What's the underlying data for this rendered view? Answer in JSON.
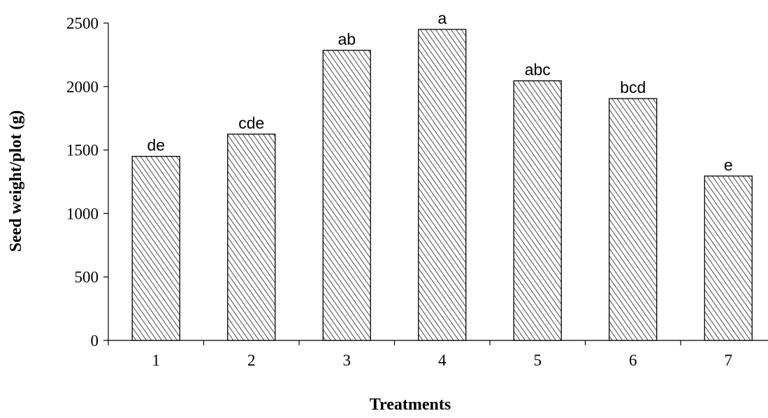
{
  "chart_data": {
    "type": "bar",
    "title": "",
    "xlabel": "Treatments",
    "ylabel": "Seed weight/plot (g)",
    "categories": [
      "1",
      "2",
      "3",
      "4",
      "5",
      "6",
      "7"
    ],
    "values": [
      1450,
      1625,
      2285,
      2450,
      2045,
      1905,
      1295
    ],
    "annotations": [
      "de",
      "cde",
      "ab",
      "a",
      "abc",
      "bcd",
      "e"
    ],
    "ylim": [
      0,
      2500
    ],
    "yticks": [
      0,
      500,
      1000,
      1500,
      2000,
      2500
    ],
    "ytick_labels": [
      "0",
      "500",
      "1000",
      "1500",
      "2000",
      "2500"
    ],
    "grid": false,
    "legend": false,
    "bar_fill": "diagonal-hatch"
  }
}
